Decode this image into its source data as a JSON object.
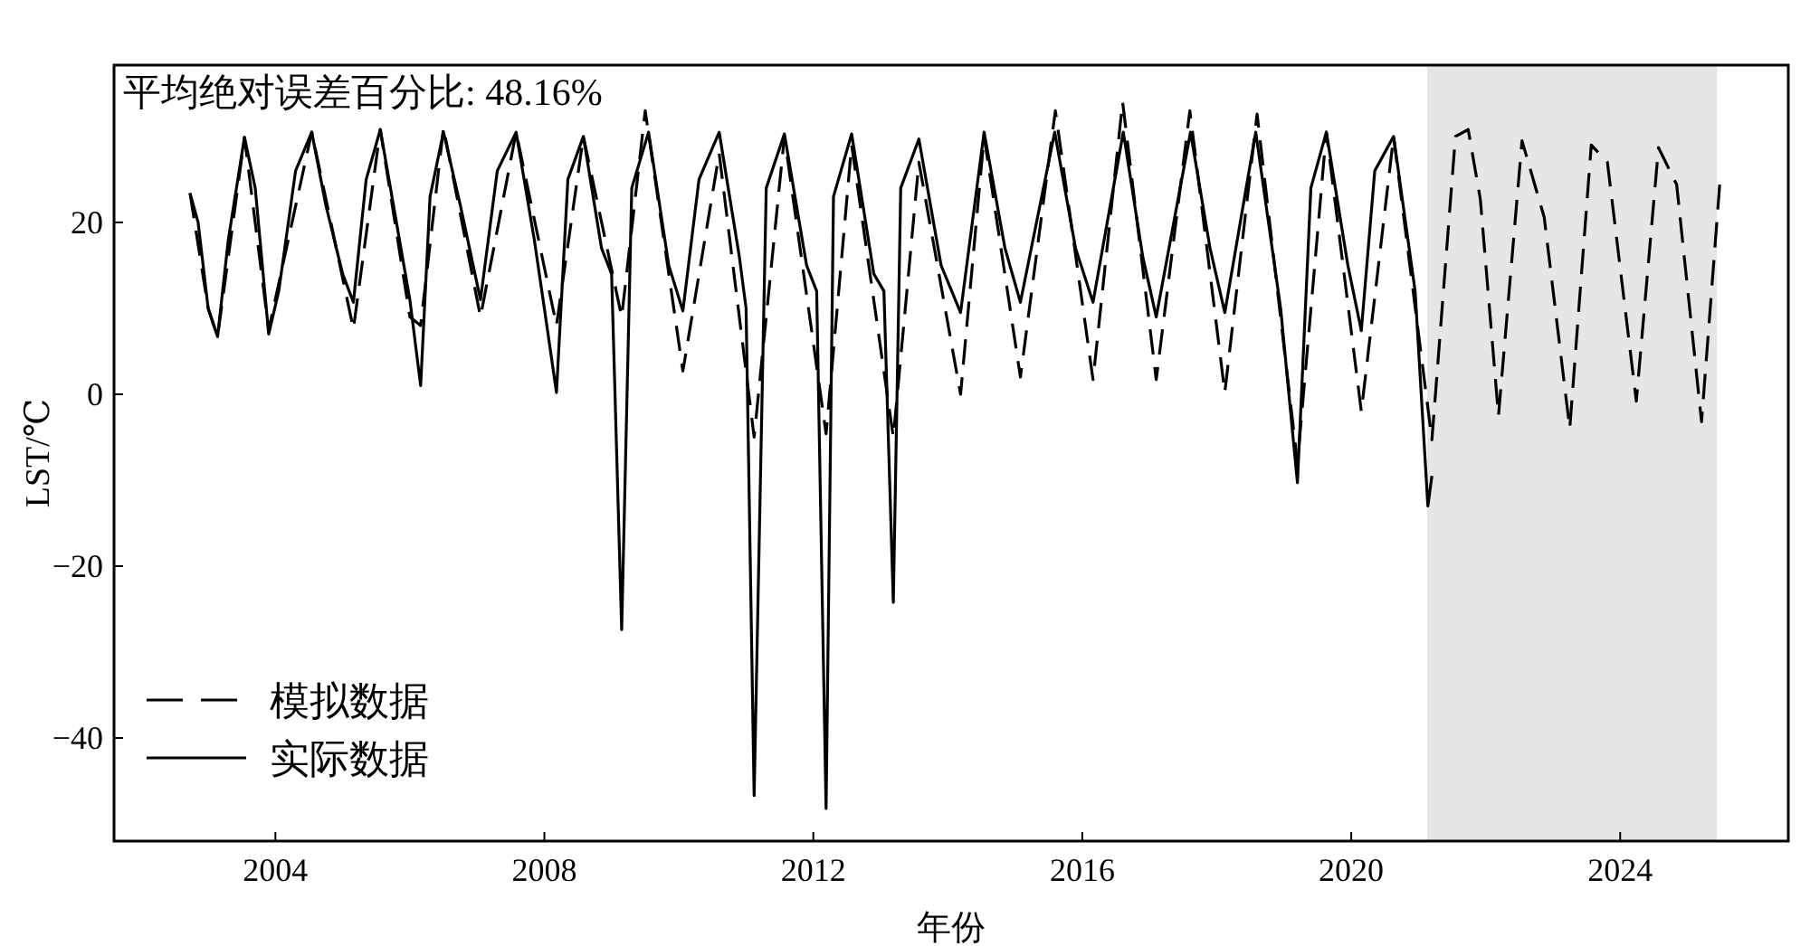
{
  "chart_data": {
    "type": "line",
    "xlabel": "年份",
    "ylabel": "LST/℃",
    "annotations": [
      "平均绝对误差百分比: 48.16%"
    ],
    "xlim": [
      2001.6,
      2026.5
    ],
    "ylim": [
      -52,
      38.3
    ],
    "xticks": [
      2004,
      2008,
      2012,
      2016,
      2020,
      2024
    ],
    "yticks": [
      -40,
      -20,
      0,
      20
    ],
    "grid": false,
    "legend": "bottom left",
    "bands": [
      {
        "axis": "x",
        "from": 2021.13,
        "to": 2025.44,
        "color": "#e6e6e6"
      }
    ],
    "series": [
      {
        "name": "模拟数据",
        "color": "#000000",
        "line_style": "dashed",
        "x": [
          2002.73,
          2003.0,
          2003.14,
          2003.54,
          2003.9,
          2004.54,
          2005.16,
          2005.56,
          2006.0,
          2006.16,
          2006.5,
          2007.05,
          2007.58,
          2008.18,
          2008.58,
          2009.15,
          2009.5,
          2010.06,
          2010.6,
          2011.12,
          2011.57,
          2012.19,
          2012.57,
          2013.19,
          2013.57,
          2014.19,
          2014.54,
          2015.08,
          2015.6,
          2016.16,
          2016.6,
          2017.1,
          2017.6,
          2018.12,
          2018.6,
          2019.2,
          2019.63,
          2020.15,
          2020.63,
          2021.2,
          2021.55,
          2021.74,
          2021.92,
          2022.19,
          2022.54,
          2022.87,
          2023.25,
          2023.57,
          2023.81,
          2024.24,
          2024.57,
          2024.84,
          2025.21,
          2025.48
        ],
        "values": [
          23.4,
          10,
          6.7,
          29.9,
          7.5,
          30.5,
          7.6,
          30.8,
          9,
          8,
          31,
          9,
          30.5,
          8,
          30,
          9,
          33,
          2.7,
          28,
          -5,
          30,
          -4.6,
          29,
          -5,
          27,
          0,
          30,
          2,
          33,
          1.7,
          34,
          1.7,
          33,
          0.2,
          32.6,
          -8,
          30.5,
          -2,
          30,
          -5.3,
          30,
          30.8,
          22.7,
          -2.5,
          29.5,
          20.6,
          -4,
          29,
          27,
          -0.8,
          28.7,
          24.4,
          -3.2,
          24.4
        ]
      },
      {
        "name": "实际数据",
        "color": "#000000",
        "line_style": "solid",
        "x": [
          2002.73,
          2002.85,
          2003.0,
          2003.14,
          2003.3,
          2003.54,
          2003.7,
          2003.9,
          2004.05,
          2004.3,
          2004.54,
          2004.75,
          2005.0,
          2005.16,
          2005.35,
          2005.56,
          2005.8,
          2006.0,
          2006.16,
          2006.3,
          2006.5,
          2006.75,
          2007.05,
          2007.3,
          2007.58,
          2007.85,
          2008.0,
          2008.18,
          2008.35,
          2008.58,
          2008.85,
          2009.0,
          2009.15,
          2009.3,
          2009.55,
          2009.85,
          2010.06,
          2010.3,
          2010.6,
          2010.9,
          2011.0,
          2011.12,
          2011.3,
          2011.57,
          2011.9,
          2012.05,
          2012.19,
          2012.3,
          2012.57,
          2012.9,
          2013.05,
          2013.19,
          2013.3,
          2013.57,
          2013.9,
          2014.19,
          2014.54,
          2014.85,
          2015.08,
          2015.59,
          2015.9,
          2016.16,
          2016.61,
          2016.9,
          2017.1,
          2017.61,
          2017.9,
          2018.12,
          2018.58,
          2018.95,
          2019.2,
          2019.4,
          2019.63,
          2019.95,
          2020.15,
          2020.35,
          2020.63,
          2020.95,
          2021.14,
          2021.2
        ],
        "values": [
          23.4,
          20,
          10,
          6.7,
          18,
          29.9,
          24,
          7,
          12,
          26,
          30.5,
          22,
          14,
          10.7,
          25,
          30.8,
          20,
          11,
          1,
          23,
          30.5,
          22,
          11,
          26,
          30.5,
          18,
          10,
          0.2,
          25,
          30,
          17,
          14,
          -27.4,
          24,
          30.5,
          15,
          9.7,
          25,
          30.5,
          16,
          10,
          -46.7,
          24,
          30.3,
          15,
          12,
          -48.2,
          23,
          30.3,
          14,
          12,
          -24.2,
          24,
          29.7,
          15,
          9.5,
          30.5,
          17,
          10.7,
          30.5,
          17,
          10.7,
          30.5,
          16,
          9,
          30.5,
          17,
          9.5,
          30.5,
          10,
          -10.3,
          24,
          30.5,
          15,
          7.4,
          26,
          30,
          12,
          -13,
          -9.5
        ]
      }
    ]
  }
}
